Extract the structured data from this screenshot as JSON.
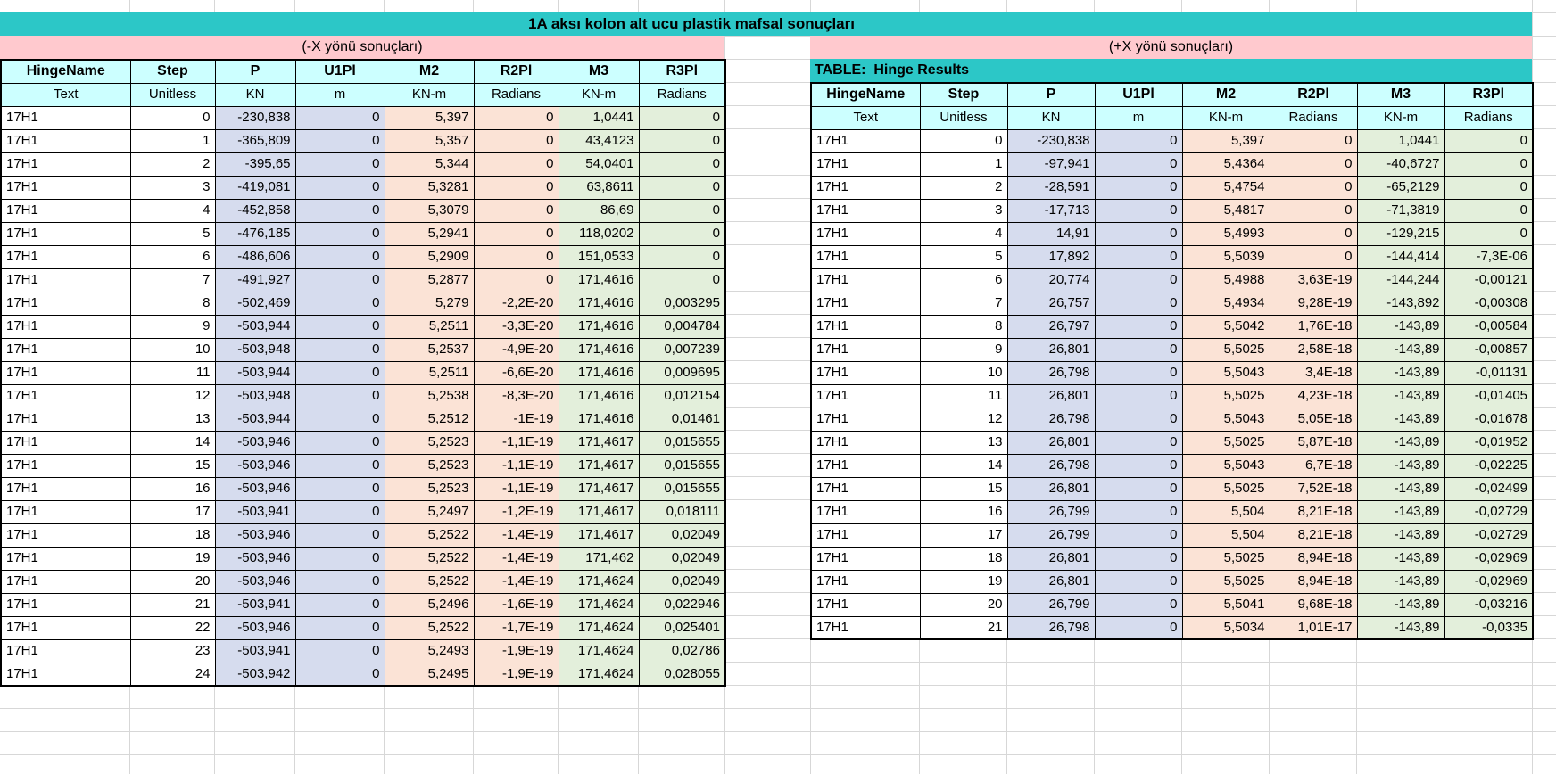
{
  "title": "1A aksı kolon alt ucu plastik mafsal sonuçları",
  "colors": {
    "teal": "#2cc7c7",
    "pink": "#ffc9ce",
    "header_cyan": "#ccffff",
    "fill_blue": "#d6dcee",
    "fill_peach": "#fbe3d6",
    "fill_green": "#e3efdb"
  },
  "left_table": {
    "banner": "(-X yönü sonuçları)",
    "columns": [
      "HingeName",
      "Step",
      "P",
      "U1Pl",
      "M2",
      "R2Pl",
      "M3",
      "R3Pl"
    ],
    "units": [
      "Text",
      "Unitless",
      "KN",
      "m",
      "KN-m",
      "Radians",
      "KN-m",
      "Radians"
    ],
    "rows": [
      [
        "17H1",
        "0",
        "-230,838",
        "0",
        "5,397",
        "0",
        "1,0441",
        "0"
      ],
      [
        "17H1",
        "1",
        "-365,809",
        "0",
        "5,357",
        "0",
        "43,4123",
        "0"
      ],
      [
        "17H1",
        "2",
        "-395,65",
        "0",
        "5,344",
        "0",
        "54,0401",
        "0"
      ],
      [
        "17H1",
        "3",
        "-419,081",
        "0",
        "5,3281",
        "0",
        "63,8611",
        "0"
      ],
      [
        "17H1",
        "4",
        "-452,858",
        "0",
        "5,3079",
        "0",
        "86,69",
        "0"
      ],
      [
        "17H1",
        "5",
        "-476,185",
        "0",
        "5,2941",
        "0",
        "118,0202",
        "0"
      ],
      [
        "17H1",
        "6",
        "-486,606",
        "0",
        "5,2909",
        "0",
        "151,0533",
        "0"
      ],
      [
        "17H1",
        "7",
        "-491,927",
        "0",
        "5,2877",
        "0",
        "171,4616",
        "0"
      ],
      [
        "17H1",
        "8",
        "-502,469",
        "0",
        "5,279",
        "-2,2E-20",
        "171,4616",
        "0,003295"
      ],
      [
        "17H1",
        "9",
        "-503,944",
        "0",
        "5,2511",
        "-3,3E-20",
        "171,4616",
        "0,004784"
      ],
      [
        "17H1",
        "10",
        "-503,948",
        "0",
        "5,2537",
        "-4,9E-20",
        "171,4616",
        "0,007239"
      ],
      [
        "17H1",
        "11",
        "-503,944",
        "0",
        "5,2511",
        "-6,6E-20",
        "171,4616",
        "0,009695"
      ],
      [
        "17H1",
        "12",
        "-503,948",
        "0",
        "5,2538",
        "-8,3E-20",
        "171,4616",
        "0,012154"
      ],
      [
        "17H1",
        "13",
        "-503,944",
        "0",
        "5,2512",
        "-1E-19",
        "171,4616",
        "0,01461"
      ],
      [
        "17H1",
        "14",
        "-503,946",
        "0",
        "5,2523",
        "-1,1E-19",
        "171,4617",
        "0,015655"
      ],
      [
        "17H1",
        "15",
        "-503,946",
        "0",
        "5,2523",
        "-1,1E-19",
        "171,4617",
        "0,015655"
      ],
      [
        "17H1",
        "16",
        "-503,946",
        "0",
        "5,2523",
        "-1,1E-19",
        "171,4617",
        "0,015655"
      ],
      [
        "17H1",
        "17",
        "-503,941",
        "0",
        "5,2497",
        "-1,2E-19",
        "171,4617",
        "0,018111"
      ],
      [
        "17H1",
        "18",
        "-503,946",
        "0",
        "5,2522",
        "-1,4E-19",
        "171,4617",
        "0,02049"
      ],
      [
        "17H1",
        "19",
        "-503,946",
        "0",
        "5,2522",
        "-1,4E-19",
        "171,462",
        "0,02049"
      ],
      [
        "17H1",
        "20",
        "-503,946",
        "0",
        "5,2522",
        "-1,4E-19",
        "171,4624",
        "0,02049"
      ],
      [
        "17H1",
        "21",
        "-503,941",
        "0",
        "5,2496",
        "-1,6E-19",
        "171,4624",
        "0,022946"
      ],
      [
        "17H1",
        "22",
        "-503,946",
        "0",
        "5,2522",
        "-1,7E-19",
        "171,4624",
        "0,025401"
      ],
      [
        "17H1",
        "23",
        "-503,941",
        "0",
        "5,2493",
        "-1,9E-19",
        "171,4624",
        "0,02786"
      ],
      [
        "17H1",
        "24",
        "-503,942",
        "0",
        "5,2495",
        "-1,9E-19",
        "171,4624",
        "0,028055"
      ]
    ]
  },
  "right_table": {
    "banner": "(+X yönü sonuçları)",
    "table_label": "TABLE:  Hinge Results",
    "columns": [
      "HingeName",
      "Step",
      "P",
      "U1Pl",
      "M2",
      "R2Pl",
      "M3",
      "R3Pl"
    ],
    "units": [
      "Text",
      "Unitless",
      "KN",
      "m",
      "KN-m",
      "Radians",
      "KN-m",
      "Radians"
    ],
    "rows": [
      [
        "17H1",
        "0",
        "-230,838",
        "0",
        "5,397",
        "0",
        "1,0441",
        "0"
      ],
      [
        "17H1",
        "1",
        "-97,941",
        "0",
        "5,4364",
        "0",
        "-40,6727",
        "0"
      ],
      [
        "17H1",
        "2",
        "-28,591",
        "0",
        "5,4754",
        "0",
        "-65,2129",
        "0"
      ],
      [
        "17H1",
        "3",
        "-17,713",
        "0",
        "5,4817",
        "0",
        "-71,3819",
        "0"
      ],
      [
        "17H1",
        "4",
        "14,91",
        "0",
        "5,4993",
        "0",
        "-129,215",
        "0"
      ],
      [
        "17H1",
        "5",
        "17,892",
        "0",
        "5,5039",
        "0",
        "-144,414",
        "-7,3E-06"
      ],
      [
        "17H1",
        "6",
        "20,774",
        "0",
        "5,4988",
        "3,63E-19",
        "-144,244",
        "-0,00121"
      ],
      [
        "17H1",
        "7",
        "26,757",
        "0",
        "5,4934",
        "9,28E-19",
        "-143,892",
        "-0,00308"
      ],
      [
        "17H1",
        "8",
        "26,797",
        "0",
        "5,5042",
        "1,76E-18",
        "-143,89",
        "-0,00584"
      ],
      [
        "17H1",
        "9",
        "26,801",
        "0",
        "5,5025",
        "2,58E-18",
        "-143,89",
        "-0,00857"
      ],
      [
        "17H1",
        "10",
        "26,798",
        "0",
        "5,5043",
        "3,4E-18",
        "-143,89",
        "-0,01131"
      ],
      [
        "17H1",
        "11",
        "26,801",
        "0",
        "5,5025",
        "4,23E-18",
        "-143,89",
        "-0,01405"
      ],
      [
        "17H1",
        "12",
        "26,798",
        "0",
        "5,5043",
        "5,05E-18",
        "-143,89",
        "-0,01678"
      ],
      [
        "17H1",
        "13",
        "26,801",
        "0",
        "5,5025",
        "5,87E-18",
        "-143,89",
        "-0,01952"
      ],
      [
        "17H1",
        "14",
        "26,798",
        "0",
        "5,5043",
        "6,7E-18",
        "-143,89",
        "-0,02225"
      ],
      [
        "17H1",
        "15",
        "26,801",
        "0",
        "5,5025",
        "7,52E-18",
        "-143,89",
        "-0,02499"
      ],
      [
        "17H1",
        "16",
        "26,799",
        "0",
        "5,504",
        "8,21E-18",
        "-143,89",
        "-0,02729"
      ],
      [
        "17H1",
        "17",
        "26,799",
        "0",
        "5,504",
        "8,21E-18",
        "-143,89",
        "-0,02729"
      ],
      [
        "17H1",
        "18",
        "26,801",
        "0",
        "5,5025",
        "8,94E-18",
        "-143,89",
        "-0,02969"
      ],
      [
        "17H1",
        "19",
        "26,801",
        "0",
        "5,5025",
        "8,94E-18",
        "-143,89",
        "-0,02969"
      ],
      [
        "17H1",
        "20",
        "26,799",
        "0",
        "5,5041",
        "9,68E-18",
        "-143,89",
        "-0,03216"
      ],
      [
        "17H1",
        "21",
        "26,798",
        "0",
        "5,5034",
        "1,01E-17",
        "-143,89",
        "-0,0335"
      ]
    ]
  }
}
